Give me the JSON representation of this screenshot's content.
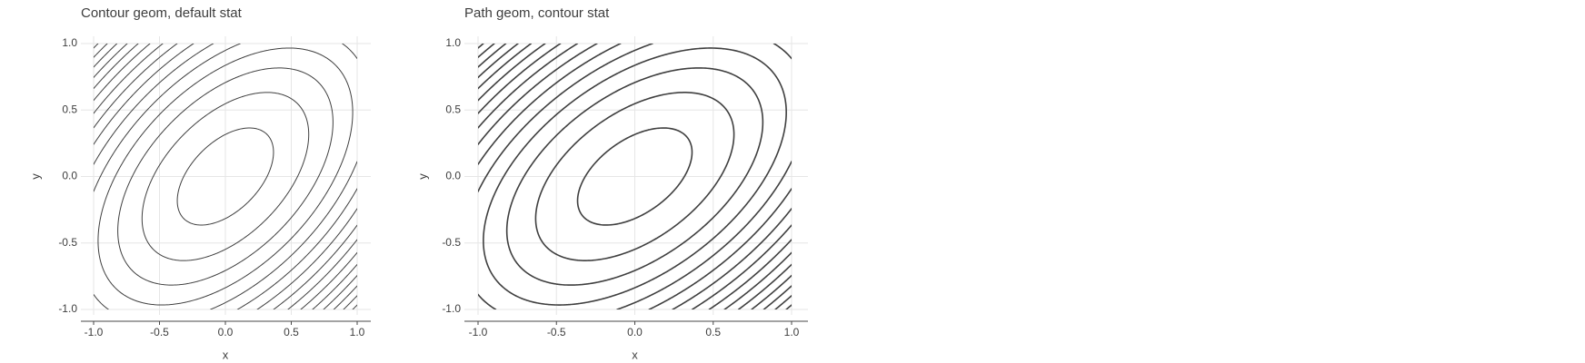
{
  "chart_data": [
    {
      "type": "line",
      "title": "Contour geom, default stat",
      "xlabel": "x",
      "ylabel": "y",
      "xlim": [
        -1.0,
        1.0
      ],
      "ylim": [
        -1.0,
        1.0
      ],
      "x_ticks": [
        "-1.0",
        "-0.5",
        "0.0",
        "0.5",
        "1.0"
      ],
      "y_ticks": [
        "-1.0",
        "-0.5",
        "0.0",
        "0.5",
        "1.0"
      ],
      "grid": true,
      "function": "z = x^2 + y^2 - x*y (elliptical contours, major axis along y = x)",
      "levels": [
        0.1,
        0.3,
        0.5,
        0.7,
        0.9,
        1.1,
        1.3,
        1.5,
        1.7,
        1.9,
        2.1,
        2.3,
        2.5,
        2.7,
        2.9
      ],
      "color": "#3f3f3f"
    },
    {
      "type": "line",
      "title": "Path geom, contour stat",
      "xlabel": "x",
      "ylabel": "y",
      "xlim": [
        -1.0,
        1.0
      ],
      "ylim": [
        -1.0,
        1.0
      ],
      "x_ticks": [
        "-1.0",
        "-0.5",
        "0.0",
        "0.5",
        "1.0"
      ],
      "y_ticks": [
        "-1.0",
        "-0.5",
        "0.0",
        "0.5",
        "1.0"
      ],
      "grid": true,
      "function": "z = x^2 + y^2 - x*y (elliptical contours, major axis along y = x)",
      "levels": [
        0.1,
        0.3,
        0.5,
        0.7,
        0.9,
        1.1,
        1.3,
        1.5,
        1.7,
        1.9,
        2.1,
        2.3,
        2.5,
        2.7,
        2.9
      ],
      "color": "#3f3f3f"
    }
  ]
}
